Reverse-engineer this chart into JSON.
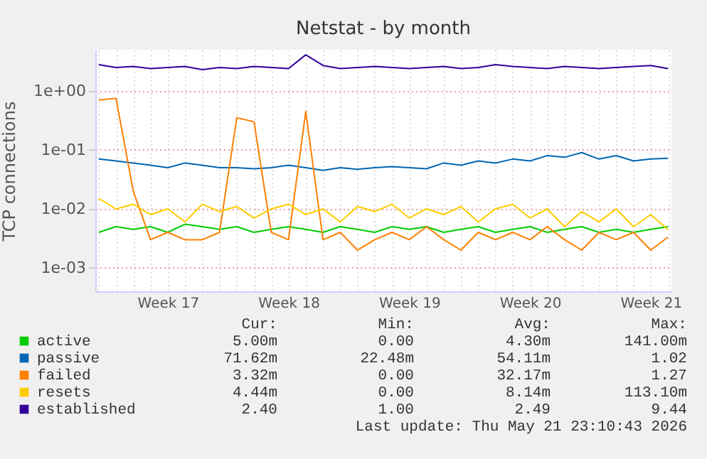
{
  "chart_data": {
    "type": "line",
    "title": "Netstat - by month",
    "ylabel": "TCP connections",
    "log": "y",
    "grid": true,
    "legend": "bottom left",
    "line_style": "solid",
    "marker": "none",
    "categories": [
      null,
      null,
      null,
      null,
      "Week 17",
      null,
      null,
      null,
      null,
      null,
      null,
      "Week 18",
      null,
      null,
      null,
      null,
      null,
      null,
      "Week 19",
      null,
      null,
      null,
      null,
      null,
      null,
      "Week 20",
      null,
      null,
      null,
      null,
      null,
      null,
      "Week 21",
      null
    ],
    "ylim": [
      0.0004,
      5
    ],
    "yticks": [
      {
        "value": 0.001,
        "label": "1e-03"
      },
      {
        "value": 0.01,
        "label": "1e-02"
      },
      {
        "value": 0.1,
        "label": "1e-01"
      },
      {
        "value": 1,
        "label": "1e+00"
      }
    ],
    "series": [
      {
        "name": "active",
        "color": "#00cc00",
        "values": [
          0.004,
          0.005,
          0.0045,
          0.005,
          0.004,
          0.0055,
          0.005,
          0.0045,
          0.005,
          0.004,
          0.0045,
          0.005,
          0.0045,
          0.004,
          0.005,
          0.0045,
          0.004,
          0.005,
          0.0045,
          0.005,
          0.004,
          0.0045,
          0.005,
          0.004,
          0.0045,
          0.005,
          0.004,
          0.0045,
          0.005,
          0.004,
          0.0045,
          0.004,
          0.0045,
          0.005
        ]
      },
      {
        "name": "passive",
        "color": "#0066b3",
        "values": [
          0.07,
          0.065,
          0.06,
          0.055,
          0.05,
          0.06,
          0.055,
          0.05,
          0.05,
          0.048,
          0.05,
          0.055,
          0.05,
          0.045,
          0.05,
          0.047,
          0.05,
          0.052,
          0.05,
          0.048,
          0.06,
          0.055,
          0.065,
          0.06,
          0.07,
          0.065,
          0.08,
          0.075,
          0.09,
          0.07,
          0.08,
          0.065,
          0.07,
          0.072
        ]
      },
      {
        "name": "failed",
        "color": "#ff8000",
        "values": [
          0.7,
          0.75,
          0.02,
          0.003,
          0.004,
          0.003,
          0.003,
          0.004,
          0.35,
          0.3,
          0.004,
          0.003,
          0.45,
          0.003,
          0.004,
          0.002,
          0.003,
          0.004,
          0.003,
          0.005,
          0.003,
          0.002,
          0.004,
          0.003,
          0.004,
          0.003,
          0.005,
          0.003,
          0.002,
          0.004,
          0.003,
          0.004,
          0.002,
          0.00332
        ]
      },
      {
        "name": "resets",
        "color": "#ffcc00",
        "values": [
          0.015,
          0.01,
          0.012,
          0.008,
          0.01,
          0.006,
          0.012,
          0.009,
          0.011,
          0.007,
          0.01,
          0.012,
          0.008,
          0.01,
          0.006,
          0.011,
          0.009,
          0.012,
          0.007,
          0.01,
          0.008,
          0.011,
          0.006,
          0.01,
          0.012,
          0.007,
          0.01,
          0.005,
          0.009,
          0.006,
          0.01,
          0.005,
          0.008,
          0.00444
        ]
      },
      {
        "name": "established",
        "color": "#330099",
        "values": [
          2.8,
          2.5,
          2.6,
          2.4,
          2.5,
          2.6,
          2.3,
          2.5,
          2.4,
          2.6,
          2.5,
          2.4,
          4.1,
          2.7,
          2.4,
          2.5,
          2.6,
          2.5,
          2.4,
          2.5,
          2.6,
          2.4,
          2.5,
          2.8,
          2.6,
          2.5,
          2.4,
          2.6,
          2.5,
          2.4,
          2.5,
          2.6,
          2.7,
          2.4
        ]
      }
    ],
    "annotations": [
      "Cur:",
      "Min:",
      "Avg:",
      "Max:",
      "5.00m",
      "0.00",
      "4.30m",
      "141.00m",
      "71.62m",
      "22.48m",
      "54.11m",
      "1.02",
      "3.32m",
      "0.00",
      "32.17m",
      "1.27",
      "4.44m",
      "0.00",
      "8.14m",
      "113.10m",
      "2.40",
      "1.00",
      "2.49",
      "9.44",
      "Last update: Thu May 21 23:10:43 2026"
    ]
  }
}
